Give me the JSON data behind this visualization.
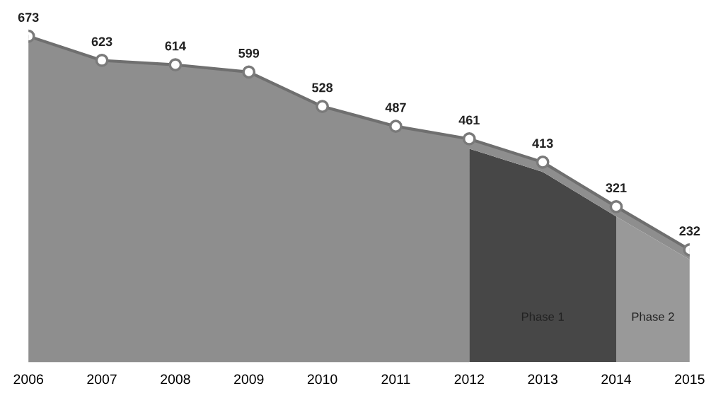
{
  "chart_data": {
    "type": "area",
    "x": [
      2006,
      2007,
      2008,
      2009,
      2010,
      2011,
      2012,
      2013,
      2014,
      2015
    ],
    "series": [
      {
        "color": "#8e8e8e",
        "values": [
          673,
          623,
          614,
          599,
          528,
          487,
          461,
          413,
          321,
          232
        ]
      }
    ],
    "xlim": [
      2006,
      2015
    ],
    "xticks": [
      2006,
      2007,
      2008,
      2009,
      2010,
      2011,
      2012,
      2013,
      2014,
      2015
    ],
    "tick_labels": "x",
    "bands": [
      {
        "axis": "x",
        "from": 2012,
        "to": 2014,
        "label": "Phase 1",
        "color": "#474747"
      },
      {
        "axis": "x",
        "from": 2014,
        "to": 2015,
        "label": "Phase 2",
        "color": "#999999"
      }
    ],
    "data_labels": true,
    "marker": "circle",
    "grid": false
  }
}
